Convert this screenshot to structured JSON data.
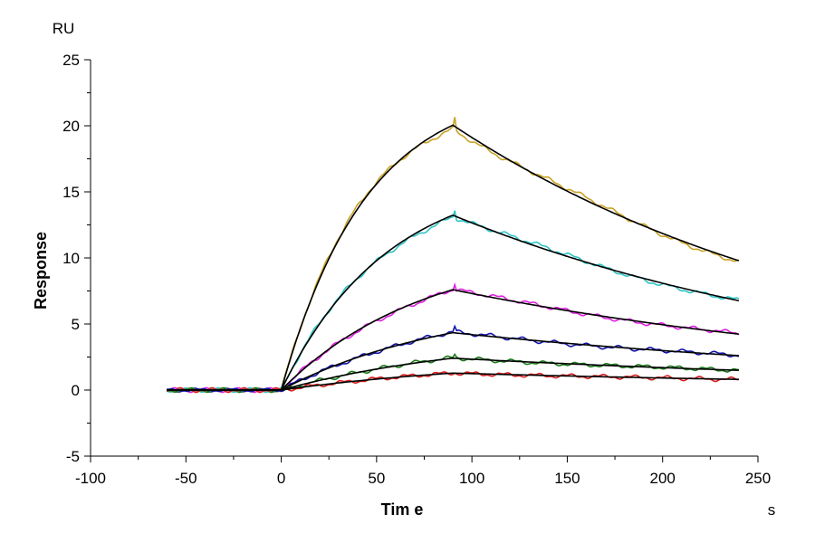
{
  "chart_data": {
    "type": "line",
    "title": "",
    "xlabel": "Tim e",
    "ylabel": "Response",
    "x_unit": "s",
    "y_unit": "RU",
    "xlim": [
      -100,
      250
    ],
    "ylim": [
      -5,
      25
    ],
    "x_ticks": [
      "-100",
      "-50",
      "0",
      "50",
      "100",
      "150",
      "200",
      "250"
    ],
    "y_ticks": [
      "-5",
      "0",
      "5",
      "10",
      "15",
      "20",
      "25"
    ],
    "grid": false,
    "legend": "none",
    "association_end": 90,
    "series": [
      {
        "color": "#C9A227",
        "fit_color": "#000000",
        "start": -60,
        "rmax": 23.1,
        "k_on": 0.0225,
        "k_off": 0.00478,
        "jump": 0.7
      },
      {
        "color": "#2EC4C4",
        "fit_color": "#000000",
        "start": -60,
        "rmax": 16.5,
        "k_on": 0.018,
        "k_off": 0.00448,
        "jump": 0.4
      },
      {
        "color": "#E020E0",
        "fit_color": "#000000",
        "start": -60,
        "rmax": 10.8,
        "k_on": 0.0135,
        "k_off": 0.0039,
        "jump": 0.4
      },
      {
        "color": "#1515A8",
        "fit_color": "#000000",
        "start": -60,
        "rmax": 6.8,
        "k_on": 0.0113,
        "k_off": 0.0034,
        "jump": 0.5
      },
      {
        "color": "#1B7A1B",
        "fit_color": "#000000",
        "start": -60,
        "rmax": 4.2,
        "k_on": 0.0095,
        "k_off": 0.0032,
        "jump": 0.3
      },
      {
        "color": "#D42020",
        "fit_color": "#000000",
        "start": -60,
        "rmax": 2.4,
        "k_on": 0.0085,
        "k_off": 0.0031,
        "jump": 0.0
      }
    ]
  }
}
